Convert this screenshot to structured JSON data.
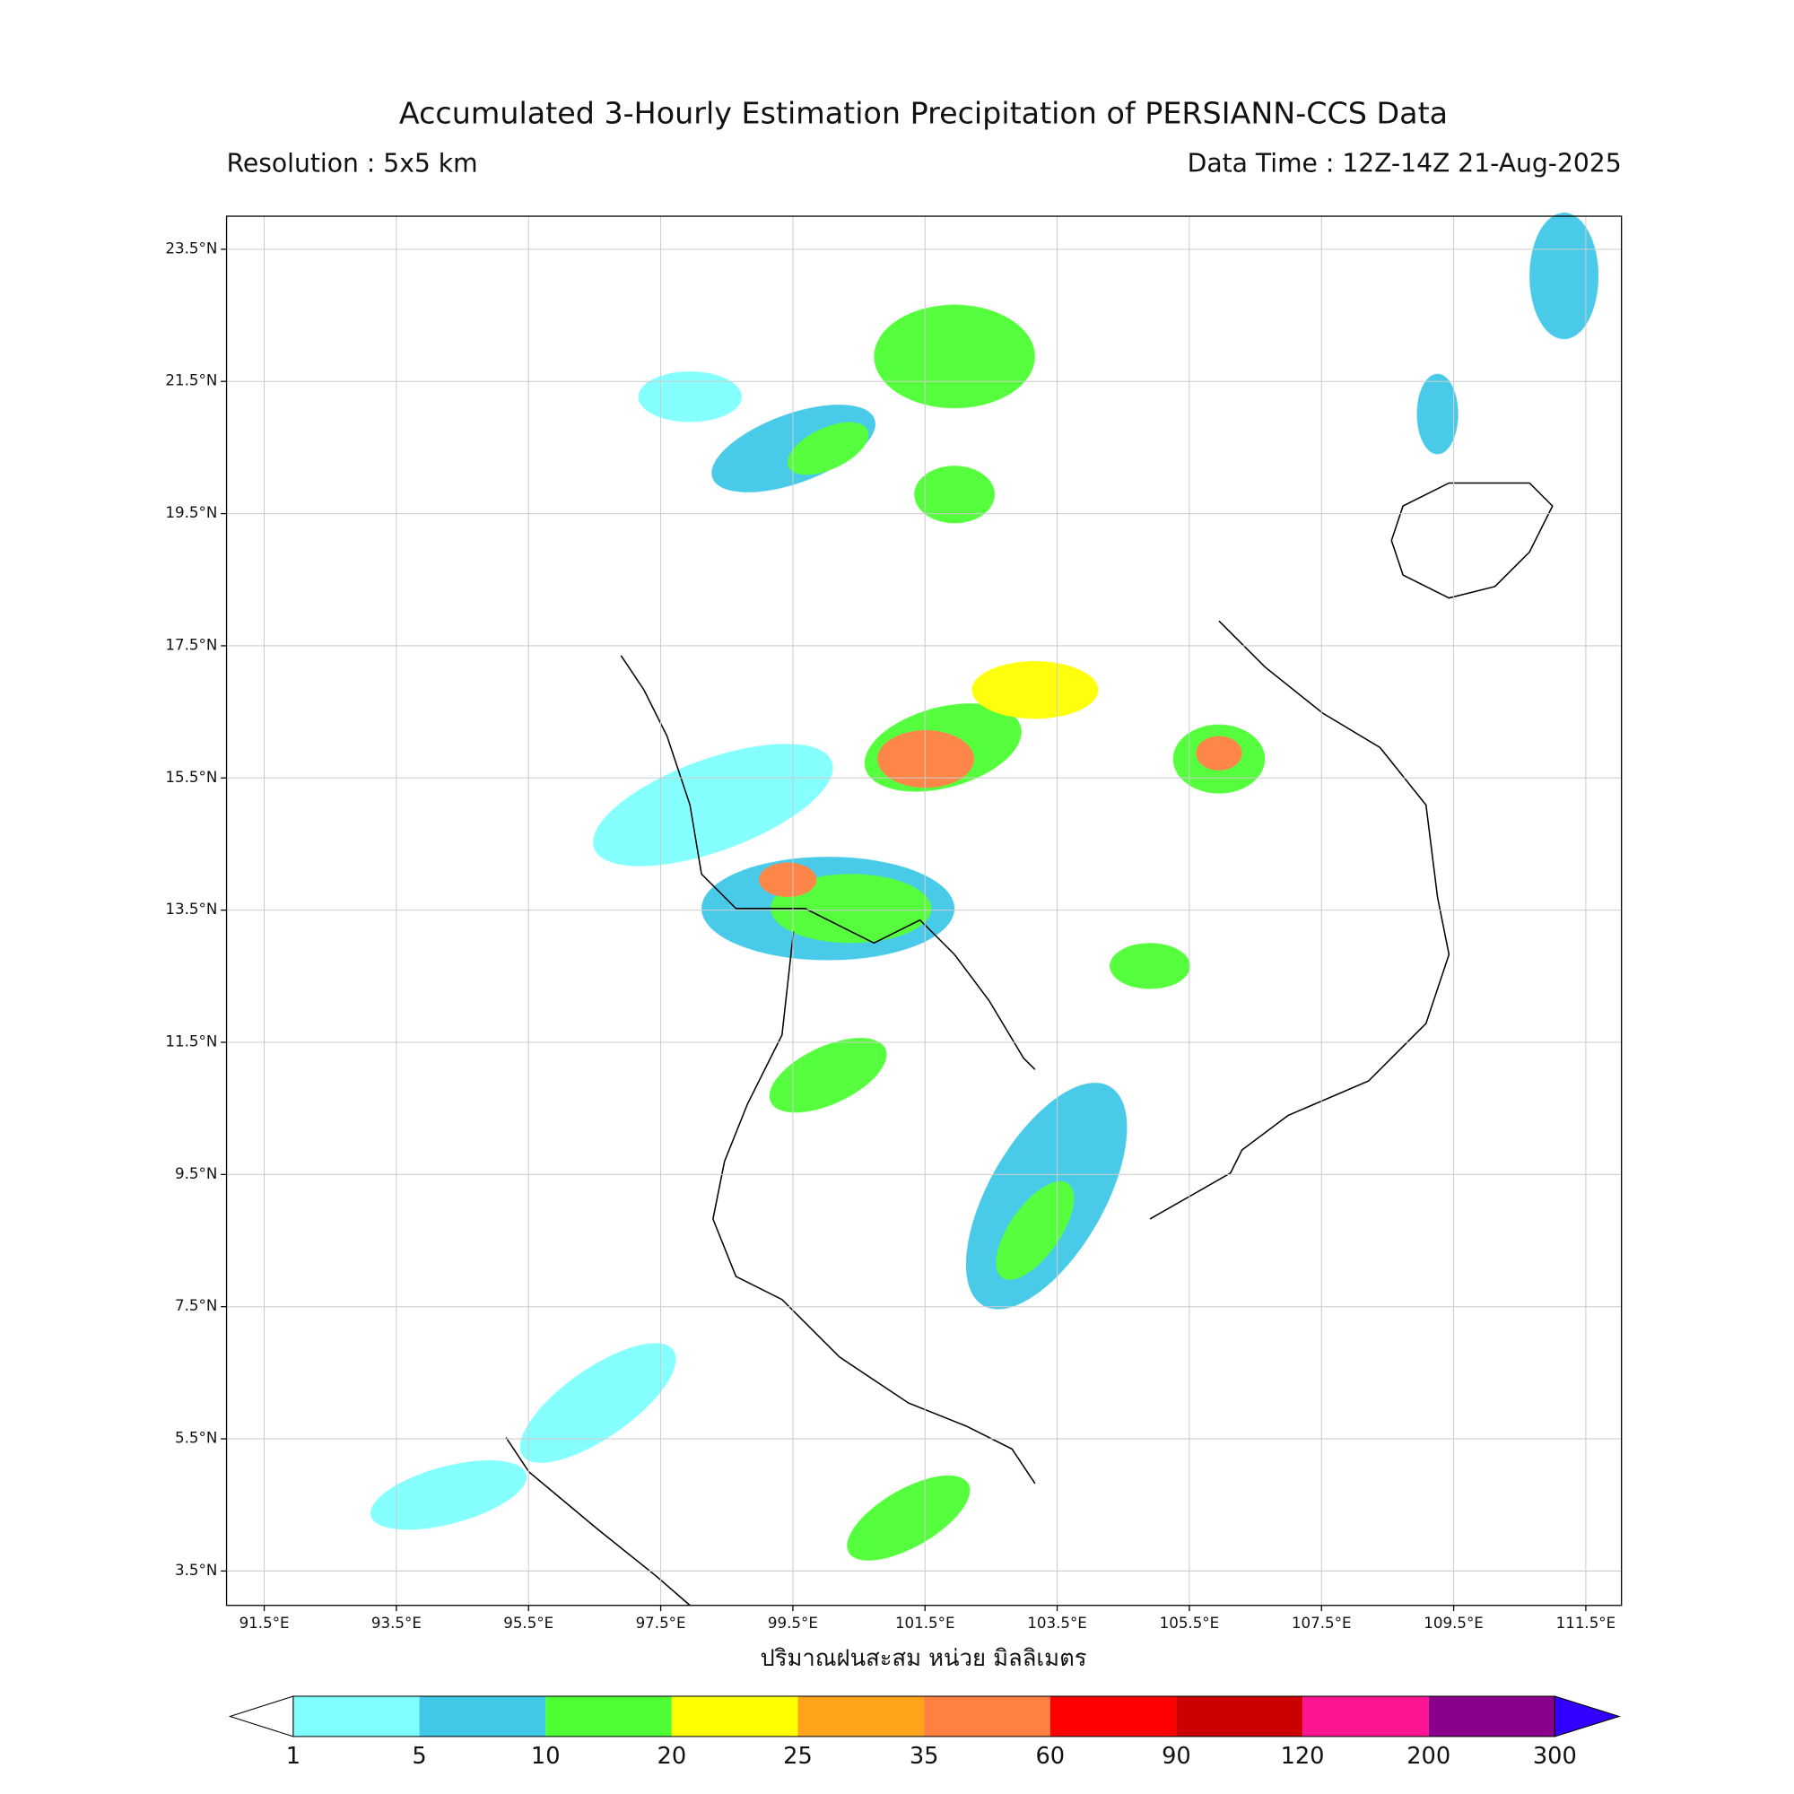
{
  "map": {
    "title": "Accumulated 3-Hourly Estimation Precipitation of PERSIANN-CCS Data",
    "resolution": "Resolution : 5x5 km",
    "data_time": "Data Time : 12Z-14Z 21-Aug-2025",
    "xlabel": "ปริมาณฝนสะสม หน่วย มิลลิเมตร",
    "xlim": [
      90.93,
      112.04
    ],
    "ylim": [
      2.98,
      24.0
    ],
    "xticks": [
      {
        "value": 91.5,
        "label": "91.5°E"
      },
      {
        "value": 93.5,
        "label": "93.5°E"
      },
      {
        "value": 95.5,
        "label": "95.5°E"
      },
      {
        "value": 97.5,
        "label": "97.5°E"
      },
      {
        "value": 99.5,
        "label": "99.5°E"
      },
      {
        "value": 101.5,
        "label": "101.5°E"
      },
      {
        "value": 103.5,
        "label": "103.5°E"
      },
      {
        "value": 105.5,
        "label": "105.5°E"
      },
      {
        "value": 107.5,
        "label": "107.5°E"
      },
      {
        "value": 109.5,
        "label": "109.5°E"
      },
      {
        "value": 111.5,
        "label": "111.5°E"
      }
    ],
    "yticks": [
      {
        "value": 23.5,
        "label": "23.5°N"
      },
      {
        "value": 21.5,
        "label": "21.5°N"
      },
      {
        "value": 19.5,
        "label": "19.5°N"
      },
      {
        "value": 17.5,
        "label": "17.5°N"
      },
      {
        "value": 15.5,
        "label": "15.5°N"
      },
      {
        "value": 13.5,
        "label": "13.5°N"
      },
      {
        "value": 11.5,
        "label": "11.5°N"
      },
      {
        "value": 9.5,
        "label": "9.5°N"
      },
      {
        "value": 7.5,
        "label": "7.5°N"
      },
      {
        "value": 5.5,
        "label": "5.5°N"
      },
      {
        "value": 3.5,
        "label": "3.5°N"
      }
    ],
    "grid": true,
    "colorbar": {
      "levels": [
        1,
        5,
        10,
        20,
        25,
        35,
        60,
        90,
        120,
        200,
        300
      ],
      "colors": [
        "#80ffff",
        "#40c8e8",
        "#4dff33",
        "#ffff00",
        "#ffa31a",
        "#ff8040",
        "#ff0000",
        "#cc0000",
        "#ff1493",
        "#8b008b"
      ],
      "under_color": "#ffffff",
      "over_color": "#3300ff"
    }
  }
}
